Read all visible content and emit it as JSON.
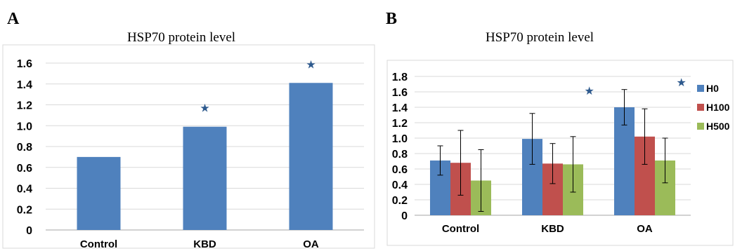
{
  "panels": {
    "a_label": "A",
    "b_label": "B"
  },
  "chart_data": [
    {
      "type": "bar",
      "title": "HSP70 protein level",
      "categories": [
        "Control",
        "KBD",
        "OA"
      ],
      "values": [
        0.7,
        0.99,
        1.41
      ],
      "significant": [
        false,
        true,
        true
      ],
      "ylim": [
        0,
        1.6
      ],
      "yticks": [
        "0",
        "0.2",
        "0.4",
        "0.6",
        "0.8",
        "1.0",
        "1.2",
        "1.4",
        "1.6"
      ],
      "grid": true,
      "colors": [
        "#4f81bd"
      ],
      "marker_color": "#2e5a8e"
    },
    {
      "type": "bar",
      "title": "HSP70 protein level",
      "categories": [
        "Control",
        "KBD",
        "OA"
      ],
      "series": [
        {
          "name": "H0",
          "values": [
            0.71,
            0.99,
            1.4
          ],
          "errors": [
            0.19,
            0.33,
            0.23
          ]
        },
        {
          "name": "H100",
          "values": [
            0.68,
            0.67,
            1.02
          ],
          "errors": [
            0.42,
            0.26,
            0.36
          ]
        },
        {
          "name": "H500",
          "values": [
            0.45,
            0.66,
            0.71
          ],
          "errors": [
            0.4,
            0.36,
            0.29
          ]
        }
      ],
      "significant_series": "H500",
      "significant": [
        false,
        true,
        true
      ],
      "ylim": [
        0,
        1.8
      ],
      "yticks": [
        "0",
        "0.2",
        "0.4",
        "0.6",
        "0.8",
        "1.0",
        "1.2",
        "1.4",
        "1.6",
        "1.8"
      ],
      "grid": true,
      "legend": "right",
      "colors": [
        "#4f81bd",
        "#c0504d",
        "#9bbb59"
      ],
      "marker_color": "#2e5a8e"
    }
  ]
}
